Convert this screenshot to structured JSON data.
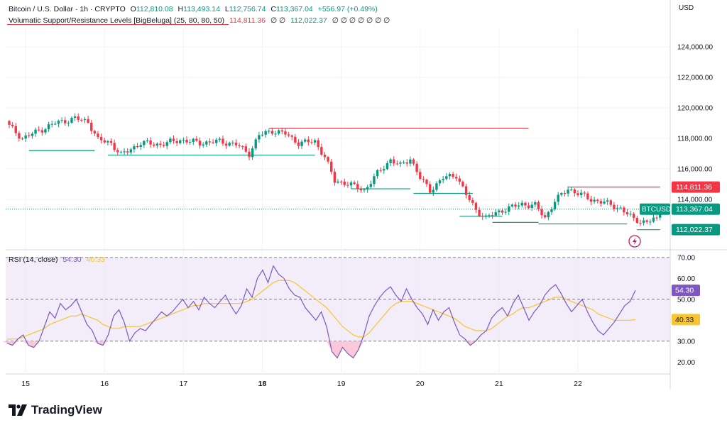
{
  "header": {
    "symbol": "Bitcoin / U.S. Dollar · 1h · CRYPTO",
    "o_label": "O",
    "o": "112,810.08",
    "h_label": "H",
    "h": "113,493.14",
    "l_label": "L",
    "l": "112,756.74",
    "c_label": "C",
    "c": "113,367.04",
    "change": "+556.97 (+0.49%)",
    "indicator": "Volumatic Support/Resistance Levels [BigBeluga] (25, 80, 80, 50)",
    "ind_v1": "114,811.36",
    "ind_v2": "112,022.37",
    "ind_nulls_a": "∅ ∅",
    "ind_nulls_b": "∅ ∅ ∅ ∅ ∅ ∅ ∅"
  },
  "currency": "USD",
  "brand": "TradingView",
  "colors": {
    "up": "#089981",
    "down": "#f23645",
    "rsi": "#7e57c2",
    "rsi_ma": "#f7c531",
    "rsi_band": "#ede7f6"
  },
  "chart_data": [
    {
      "type": "candlestick",
      "title": "Bitcoin / U.S. Dollar · 1h · CRYPTO",
      "ylim": [
        110800,
        125200
      ],
      "y_ticks": [
        "124,000.00",
        "122,000.00",
        "120,000.00",
        "118,000.00",
        "116,000.00",
        "114,000.00"
      ],
      "y_tick_values": [
        124000,
        122000,
        120000,
        118000,
        116000,
        114000
      ],
      "x_ticks": [
        "15",
        "16",
        "17",
        "18",
        "19",
        "20",
        "21",
        "22"
      ],
      "anchors": [
        [
          0,
          118800
        ],
        [
          4,
          118000
        ],
        [
          8,
          118400
        ],
        [
          14,
          119000
        ],
        [
          20,
          119300
        ],
        [
          24,
          119100
        ],
        [
          27,
          117900
        ],
        [
          31,
          117700
        ],
        [
          34,
          116900
        ],
        [
          40,
          117700
        ],
        [
          46,
          117600
        ],
        [
          52,
          117900
        ],
        [
          58,
          117700
        ],
        [
          64,
          117800
        ],
        [
          69,
          117600
        ],
        [
          73,
          117000
        ],
        [
          76,
          118200
        ],
        [
          80,
          118500
        ],
        [
          84,
          118300
        ],
        [
          88,
          117700
        ],
        [
          93,
          117800
        ],
        [
          96,
          116800
        ],
        [
          99,
          115200
        ],
        [
          102,
          115100
        ],
        [
          108,
          114600
        ],
        [
          112,
          115700
        ],
        [
          116,
          116600
        ],
        [
          119,
          116200
        ],
        [
          122,
          116700
        ],
        [
          125,
          115400
        ],
        [
          128,
          114600
        ],
        [
          132,
          115400
        ],
        [
          136,
          115600
        ],
        [
          139,
          114300
        ],
        [
          142,
          113300
        ],
        [
          145,
          112800
        ],
        [
          150,
          113300
        ],
        [
          156,
          113700
        ],
        [
          160,
          113600
        ],
        [
          163,
          112800
        ],
        [
          166,
          113900
        ],
        [
          170,
          114700
        ],
        [
          174,
          114300
        ],
        [
          177,
          114000
        ],
        [
          181,
          113800
        ],
        [
          186,
          113400
        ],
        [
          190,
          112700
        ],
        [
          194,
          112500
        ],
        [
          197,
          112810
        ],
        [
          198,
          113367
        ]
      ],
      "last_price": "113,367.04",
      "last_price_value": 113367.04,
      "symbol_tag": "BTCUSD",
      "resistance": {
        "label": "114,811.36",
        "value": 114811.36
      },
      "support": {
        "label": "112,022.37",
        "value": 112022.37
      },
      "level_lines": [
        {
          "kind": "resistance",
          "value": 118650,
          "from": 79,
          "to": 158
        },
        {
          "kind": "resistance",
          "value": 114811,
          "from": 170,
          "to": 198
        },
        {
          "kind": "support",
          "value": 117200,
          "from": 6,
          "to": 26
        },
        {
          "kind": "support",
          "value": 116900,
          "from": 30,
          "to": 93
        },
        {
          "kind": "support",
          "value": 114700,
          "from": 104,
          "to": 122
        },
        {
          "kind": "support",
          "value": 114400,
          "from": 123,
          "to": 141
        },
        {
          "kind": "support",
          "value": 112900,
          "from": 137,
          "to": 150
        },
        {
          "kind": "support",
          "value": 112500,
          "from": 147,
          "to": 161
        },
        {
          "kind": "support",
          "value": 112400,
          "from": 161,
          "to": 188
        },
        {
          "kind": "support",
          "value": 112022,
          "from": 191,
          "to": 198
        }
      ]
    },
    {
      "type": "line",
      "title": "RSI (14, close)",
      "legend_values": [
        "54.30",
        "40.33"
      ],
      "ylim": [
        15,
        73
      ],
      "y_ticks": [
        "70.00",
        "60.00",
        "50.00",
        "30.00",
        "20.00"
      ],
      "y_tick_values": [
        70,
        60,
        50,
        30,
        20
      ],
      "band": [
        30,
        70
      ],
      "midline": 50,
      "rsi": [
        29,
        28,
        31,
        33,
        28,
        27,
        30,
        37,
        44,
        41,
        48,
        45,
        47,
        50,
        44,
        38,
        35,
        29,
        28,
        33,
        42,
        45,
        39,
        30,
        34,
        36,
        35,
        38,
        41,
        44,
        42,
        44,
        47,
        50,
        46,
        49,
        45,
        51,
        48,
        46,
        49,
        52,
        47,
        43,
        47,
        55,
        51,
        60,
        64,
        58,
        66,
        62,
        60,
        55,
        52,
        51,
        46,
        43,
        40,
        44,
        37,
        25,
        22,
        27,
        24,
        22,
        26,
        33,
        42,
        47,
        51,
        54,
        56,
        52,
        49,
        55,
        50,
        46,
        43,
        38,
        45,
        40,
        44,
        46,
        39,
        33,
        31,
        28,
        30,
        33,
        35,
        41,
        44,
        46,
        42,
        48,
        52,
        46,
        40,
        44,
        47,
        52,
        55,
        57,
        53,
        48,
        44,
        47,
        50,
        44,
        39,
        35,
        33,
        36,
        39,
        43,
        47,
        49,
        54.3
      ],
      "rsi_ma": [
        31,
        31,
        31,
        32,
        33,
        34,
        35,
        36,
        38,
        39,
        40,
        41,
        42,
        42,
        43,
        42,
        41,
        40,
        38,
        37,
        36,
        36,
        37,
        37,
        37,
        37,
        38,
        39,
        40,
        41,
        42,
        43,
        44,
        45,
        46,
        47,
        47,
        48,
        48,
        48,
        48,
        48,
        48,
        48,
        48,
        49,
        50,
        52,
        54,
        56,
        58,
        59,
        59,
        59,
        58,
        56,
        54,
        52,
        50,
        48,
        46,
        43,
        40,
        37,
        35,
        33,
        32,
        32,
        34,
        37,
        40,
        43,
        46,
        48,
        49,
        49,
        49,
        48,
        47,
        46,
        45,
        44,
        43,
        42,
        41,
        39,
        37,
        36,
        35,
        35,
        35,
        36,
        38,
        40,
        42,
        43,
        45,
        46,
        46,
        47,
        48,
        49,
        50,
        51,
        51,
        50,
        49,
        48,
        47,
        46,
        45,
        43,
        42,
        41,
        40,
        40,
        40,
        40,
        40.33
      ]
    }
  ]
}
